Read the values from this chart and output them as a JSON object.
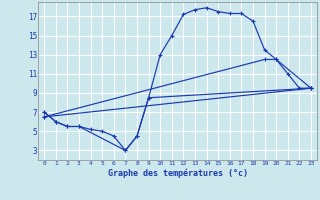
{
  "background_color": "#cce8ec",
  "grid_color": "#ffffff",
  "line_color": "#1a39b0",
  "xlabel": "Graphe des températures (°c)",
  "xlim": [
    -0.5,
    23.5
  ],
  "ylim": [
    2.0,
    18.5
  ],
  "yticks": [
    3,
    5,
    7,
    9,
    11,
    13,
    15,
    17
  ],
  "xticks": [
    0,
    1,
    2,
    3,
    4,
    5,
    6,
    7,
    8,
    9,
    10,
    11,
    12,
    13,
    14,
    15,
    16,
    17,
    18,
    19,
    20,
    21,
    22,
    23
  ],
  "line1_x": [
    0,
    1,
    2,
    3,
    4,
    5,
    6,
    7,
    8,
    9,
    10,
    11,
    12,
    13,
    14,
    15,
    16,
    17,
    18,
    19,
    20,
    21,
    22,
    23
  ],
  "line1_y": [
    7.0,
    6.0,
    5.5,
    5.5,
    5.2,
    5.0,
    4.5,
    3.0,
    4.5,
    8.5,
    13.0,
    15.0,
    17.2,
    17.7,
    17.9,
    17.5,
    17.3,
    17.3,
    16.5,
    13.5,
    12.5,
    11.0,
    9.5,
    9.5
  ],
  "line2_x": [
    0,
    1,
    2,
    3,
    7,
    8,
    9,
    23
  ],
  "line2_y": [
    7.0,
    6.0,
    5.5,
    5.5,
    3.0,
    4.5,
    8.5,
    9.5
  ],
  "line3_x": [
    0,
    23
  ],
  "line3_y": [
    6.5,
    9.5
  ],
  "line4_x": [
    0,
    19,
    20,
    23
  ],
  "line4_y": [
    6.5,
    12.5,
    12.5,
    9.5
  ]
}
